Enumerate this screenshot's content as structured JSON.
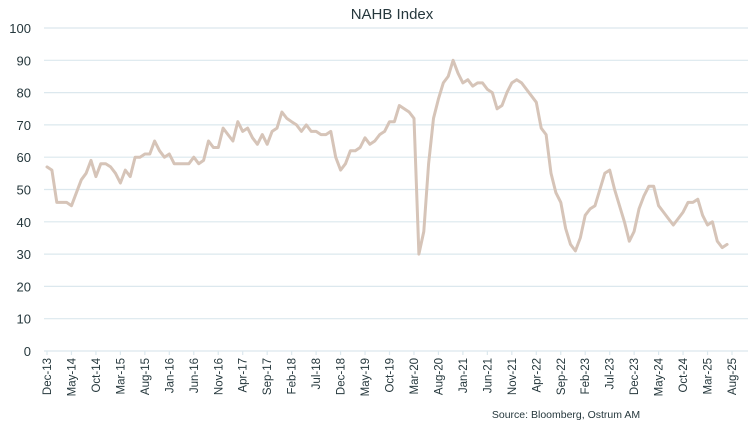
{
  "chart_data": {
    "type": "line",
    "title": "NAHB Index",
    "source": "Source: Bloomberg, Ostrum AM",
    "xlabel": "",
    "ylabel": "",
    "ylim": [
      0,
      100
    ],
    "yticks": [
      0,
      10,
      20,
      30,
      40,
      50,
      60,
      70,
      80,
      90,
      100
    ],
    "xlim": [
      "2013-12",
      "2025-08"
    ],
    "xtick_labels": [
      "Dec-13",
      "May-14",
      "Oct-14",
      "Mar-15",
      "Aug-15",
      "Jan-16",
      "Jun-16",
      "Nov-16",
      "Apr-17",
      "Sep-17",
      "Feb-18",
      "Jul-18",
      "Dec-18",
      "May-19",
      "Oct-19",
      "Mar-20",
      "Aug-20",
      "Jan-21",
      "Jun-21",
      "Nov-21",
      "Apr-22",
      "Sep-22",
      "Feb-23",
      "Jul-23",
      "Dec-23",
      "May-24",
      "Oct-24",
      "Mar-25",
      "Aug-25"
    ],
    "grid": true,
    "legend": "none",
    "colors": {
      "line": "#d6c4b8",
      "grid": "#dce8ee",
      "text": "#26383d"
    },
    "series": [
      {
        "start": "2013-12",
        "frequency": "monthly",
        "values": [
          57,
          56,
          46,
          46,
          46,
          45,
          49,
          53,
          55,
          59,
          54,
          58,
          58,
          57,
          55,
          52,
          56,
          54,
          60,
          60,
          61,
          61,
          65,
          62,
          60,
          61,
          58,
          58,
          58,
          58,
          60,
          58,
          59,
          65,
          63,
          63,
          69,
          67,
          65,
          71,
          68,
          69,
          66,
          64,
          67,
          64,
          68,
          69,
          74,
          72,
          71,
          70,
          68,
          70,
          68,
          68,
          67,
          67,
          68,
          60,
          56,
          58,
          62,
          62,
          63,
          66,
          64,
          65,
          67,
          68,
          71,
          71,
          76,
          75,
          74,
          72,
          30,
          37,
          58,
          72,
          78,
          83,
          85,
          90,
          86,
          83,
          84,
          82,
          83,
          83,
          81,
          80,
          75,
          76,
          80,
          83,
          84,
          83,
          81,
          79,
          77,
          69,
          67,
          55,
          49,
          46,
          38,
          33,
          31,
          35,
          42,
          44,
          45,
          50,
          55,
          56,
          50,
          45,
          40,
          34,
          37,
          44,
          48,
          51,
          51,
          45,
          43,
          41,
          39,
          41,
          43,
          46,
          46,
          47,
          42,
          39,
          40,
          34,
          32,
          33
        ]
      }
    ]
  }
}
